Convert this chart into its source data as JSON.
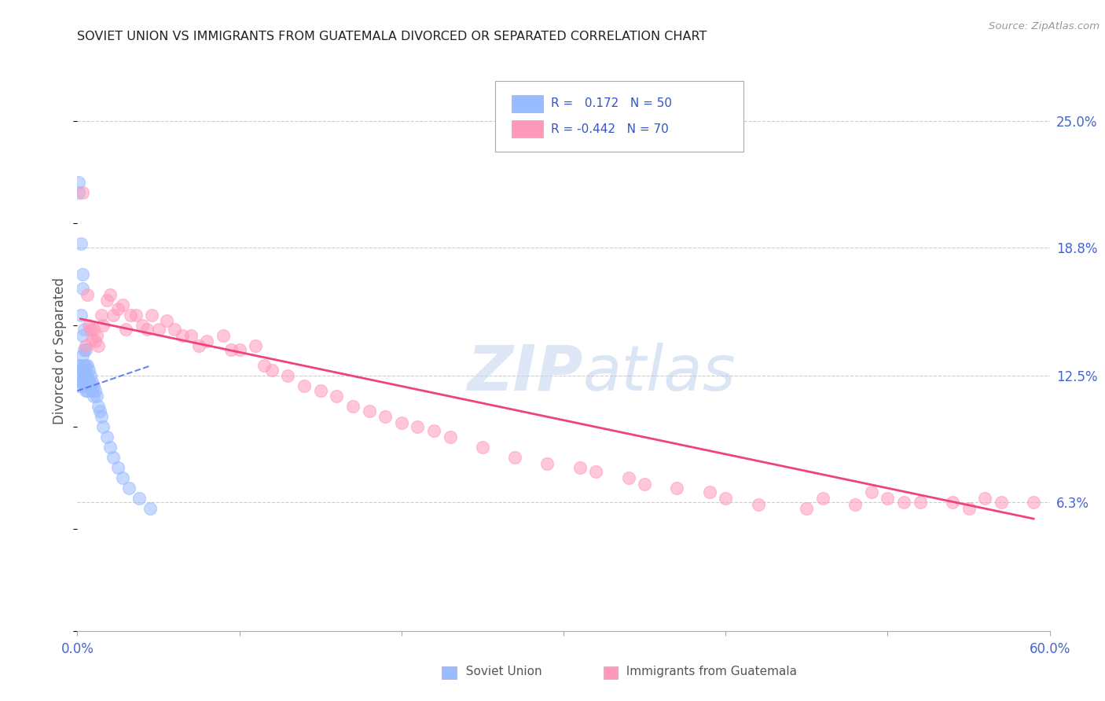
{
  "title": "SOVIET UNION VS IMMIGRANTS FROM GUATEMALA DIVORCED OR SEPARATED CORRELATION CHART",
  "source": "Source: ZipAtlas.com",
  "xlim": [
    0.0,
    0.6
  ],
  "ylim": [
    0.0,
    0.275
  ],
  "ylabel_ticks": [
    "6.3%",
    "12.5%",
    "18.8%",
    "25.0%"
  ],
  "ylabel_vals": [
    0.063,
    0.125,
    0.188,
    0.25
  ],
  "ylabel_label": "Divorced or Separated",
  "soviet_R": 0.172,
  "soviet_N": 50,
  "guatemala_R": -0.442,
  "guatemala_N": 70,
  "soviet_color": "#99BBFF",
  "guatemala_color": "#FF99BB",
  "soviet_line_color": "#5577EE",
  "guatemala_line_color": "#EE4477",
  "watermark_zip": "ZIP",
  "watermark_atlas": "atlas",
  "soviet_x": [
    0.001,
    0.001,
    0.001,
    0.001,
    0.001,
    0.002,
    0.002,
    0.002,
    0.002,
    0.002,
    0.003,
    0.003,
    0.003,
    0.003,
    0.003,
    0.003,
    0.004,
    0.004,
    0.004,
    0.004,
    0.004,
    0.005,
    0.005,
    0.005,
    0.005,
    0.006,
    0.006,
    0.006,
    0.007,
    0.007,
    0.008,
    0.008,
    0.009,
    0.009,
    0.01,
    0.01,
    0.011,
    0.012,
    0.013,
    0.014,
    0.015,
    0.016,
    0.018,
    0.02,
    0.022,
    0.025,
    0.028,
    0.032,
    0.038,
    0.045
  ],
  "soviet_y": [
    0.22,
    0.215,
    0.13,
    0.125,
    0.12,
    0.19,
    0.155,
    0.13,
    0.128,
    0.122,
    0.175,
    0.168,
    0.145,
    0.135,
    0.128,
    0.122,
    0.148,
    0.138,
    0.13,
    0.125,
    0.12,
    0.138,
    0.13,
    0.125,
    0.118,
    0.13,
    0.125,
    0.118,
    0.128,
    0.122,
    0.125,
    0.12,
    0.122,
    0.118,
    0.12,
    0.115,
    0.118,
    0.115,
    0.11,
    0.108,
    0.105,
    0.1,
    0.095,
    0.09,
    0.085,
    0.08,
    0.075,
    0.07,
    0.065,
    0.06
  ],
  "guatemala_x": [
    0.003,
    0.005,
    0.006,
    0.007,
    0.008,
    0.009,
    0.01,
    0.011,
    0.012,
    0.013,
    0.015,
    0.016,
    0.018,
    0.02,
    0.022,
    0.025,
    0.028,
    0.03,
    0.033,
    0.036,
    0.04,
    0.043,
    0.046,
    0.05,
    0.055,
    0.06,
    0.065,
    0.07,
    0.075,
    0.08,
    0.09,
    0.095,
    0.1,
    0.11,
    0.115,
    0.12,
    0.13,
    0.14,
    0.15,
    0.16,
    0.17,
    0.18,
    0.19,
    0.2,
    0.21,
    0.22,
    0.23,
    0.25,
    0.27,
    0.29,
    0.31,
    0.32,
    0.34,
    0.35,
    0.37,
    0.39,
    0.4,
    0.42,
    0.45,
    0.46,
    0.48,
    0.49,
    0.5,
    0.51,
    0.52,
    0.54,
    0.55,
    0.56,
    0.57,
    0.59
  ],
  "guatemala_y": [
    0.215,
    0.14,
    0.165,
    0.15,
    0.148,
    0.143,
    0.148,
    0.142,
    0.145,
    0.14,
    0.155,
    0.15,
    0.162,
    0.165,
    0.155,
    0.158,
    0.16,
    0.148,
    0.155,
    0.155,
    0.15,
    0.148,
    0.155,
    0.148,
    0.152,
    0.148,
    0.145,
    0.145,
    0.14,
    0.142,
    0.145,
    0.138,
    0.138,
    0.14,
    0.13,
    0.128,
    0.125,
    0.12,
    0.118,
    0.115,
    0.11,
    0.108,
    0.105,
    0.102,
    0.1,
    0.098,
    0.095,
    0.09,
    0.085,
    0.082,
    0.08,
    0.078,
    0.075,
    0.072,
    0.07,
    0.068,
    0.065,
    0.062,
    0.06,
    0.065,
    0.062,
    0.068,
    0.065,
    0.063,
    0.063,
    0.063,
    0.06,
    0.065,
    0.063,
    0.063
  ],
  "guat_line_x_start": 0.002,
  "guat_line_x_end": 0.59,
  "guat_line_y_start": 0.153,
  "guat_line_y_end": 0.055,
  "sov_line_x_start": 0.001,
  "sov_line_x_end": 0.045,
  "sov_line_y_start": 0.118,
  "sov_line_y_end": 0.13
}
